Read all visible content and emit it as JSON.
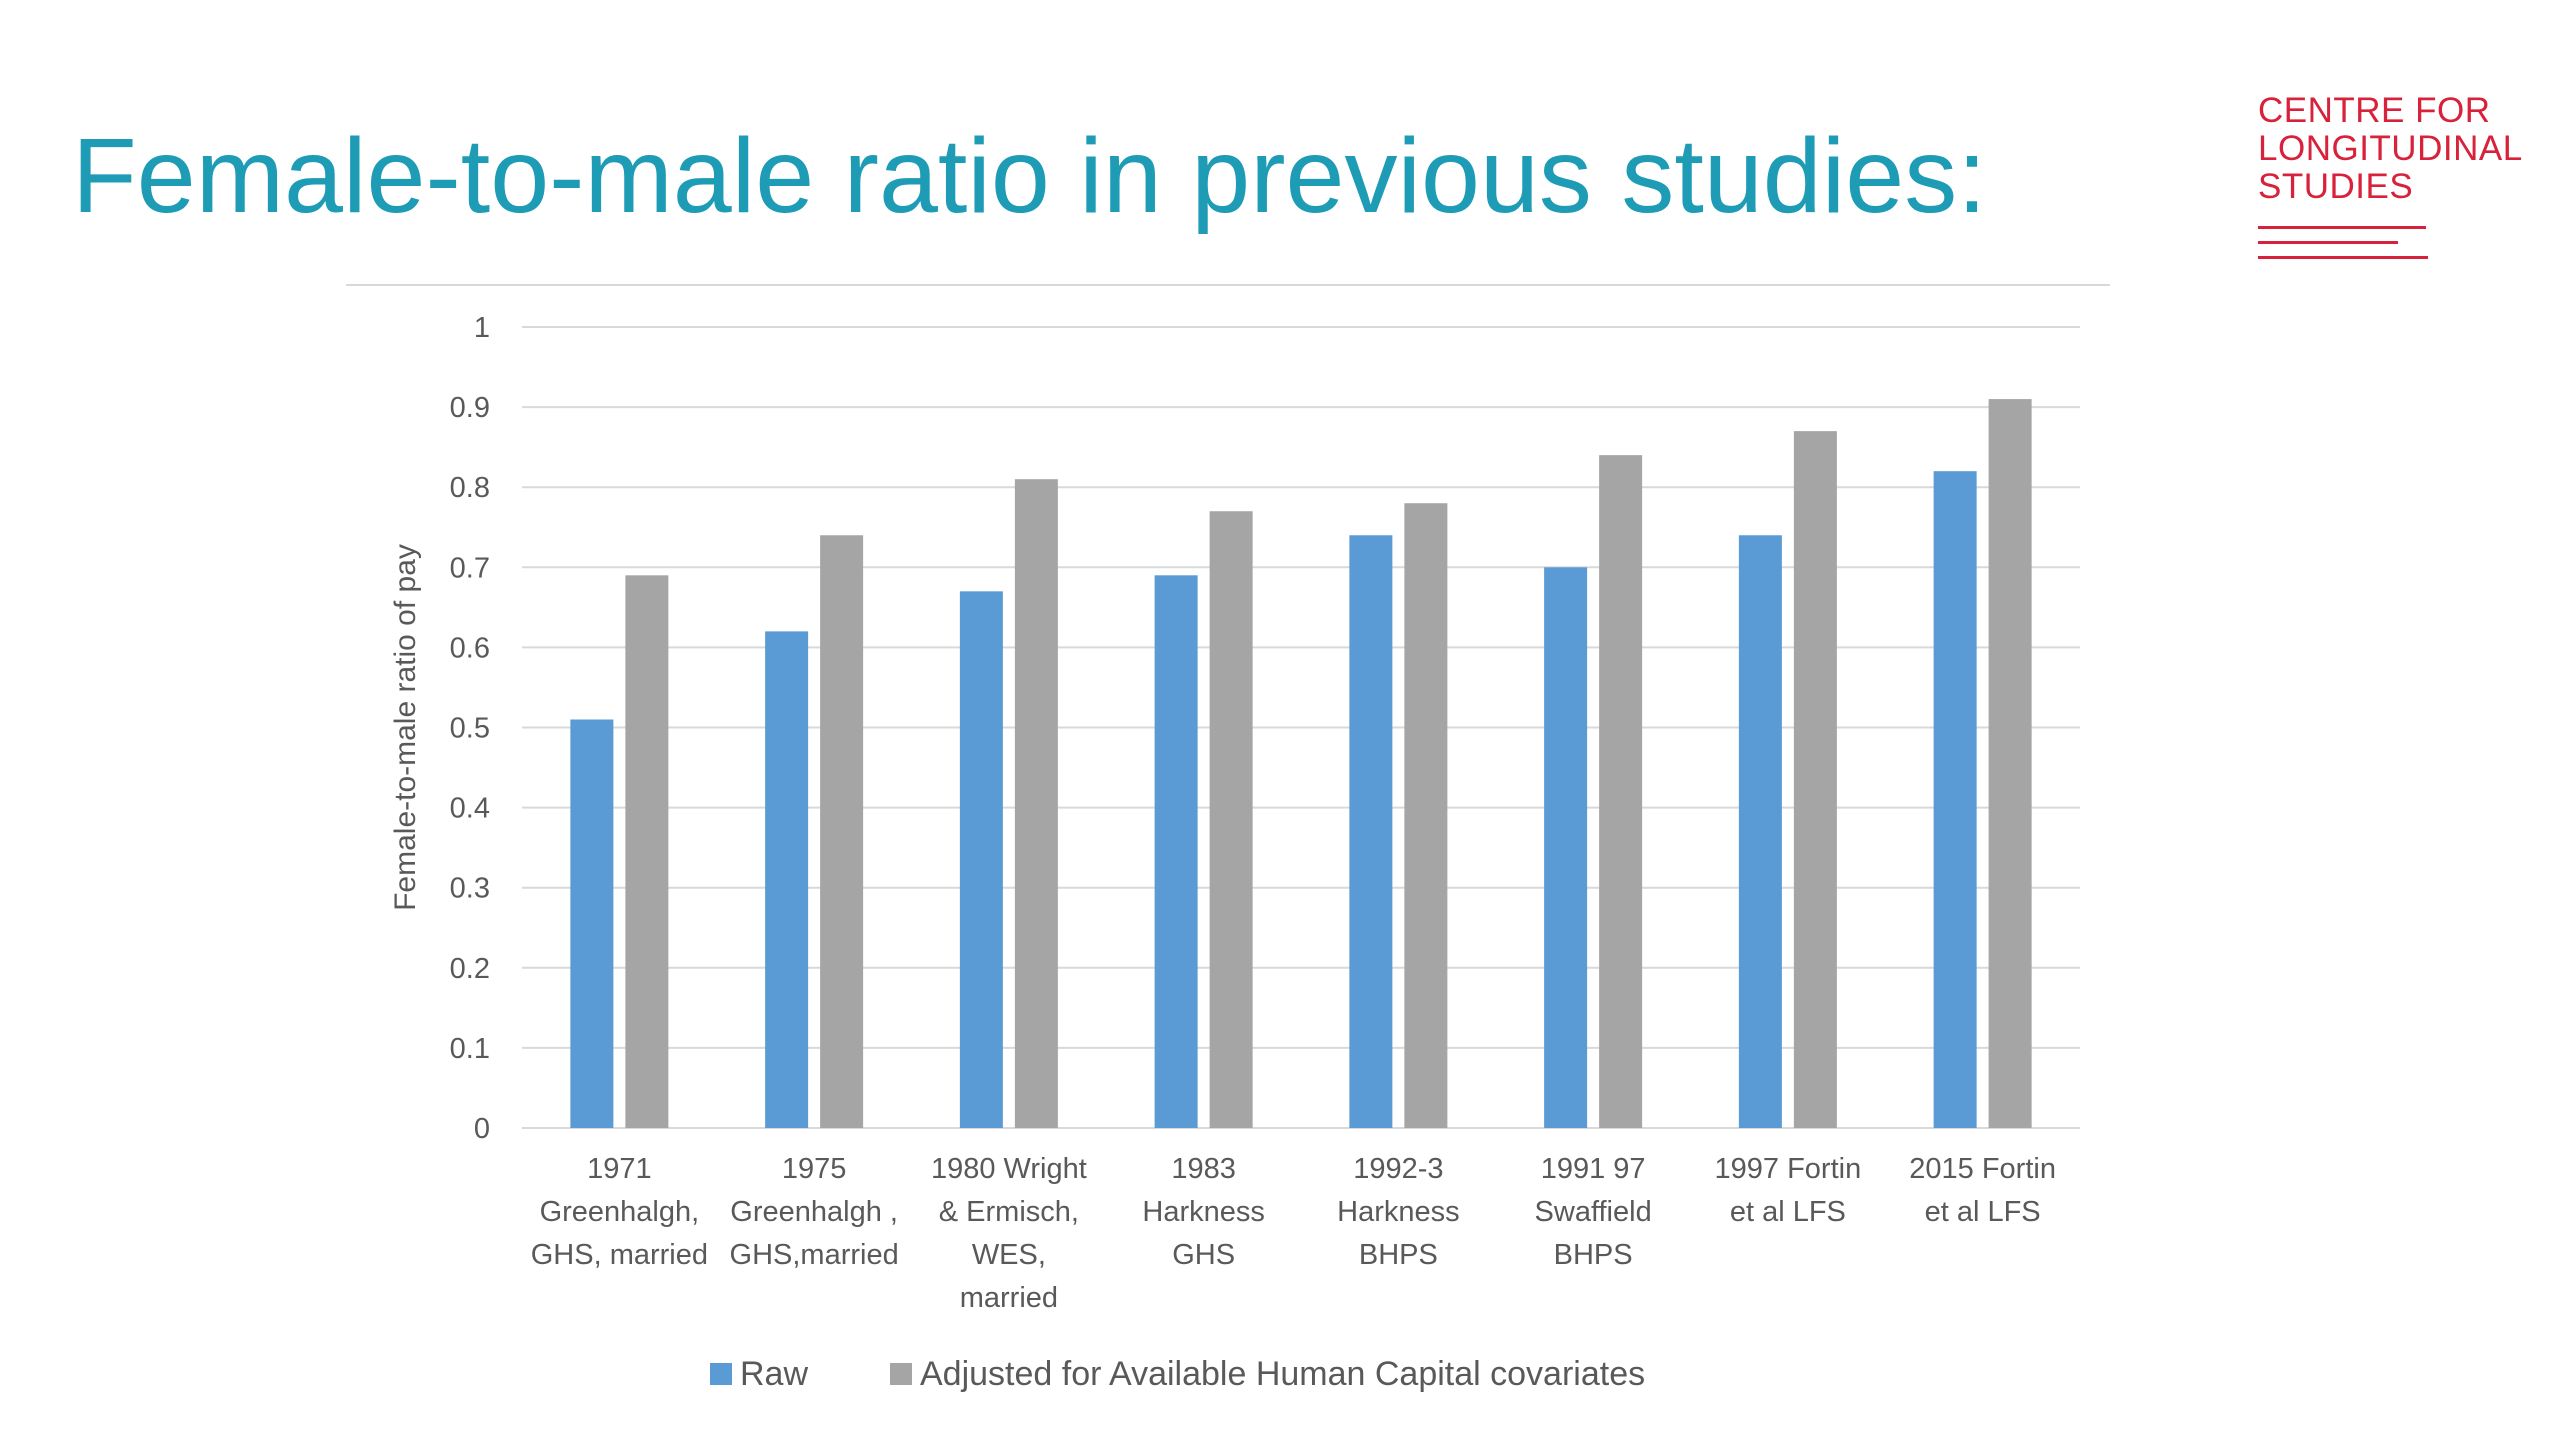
{
  "slide": {
    "title": "Female-to-male ratio in previous studies:"
  },
  "logo": {
    "lines": [
      "CENTRE FOR",
      "LONGITUDINAL",
      "STUDIES"
    ]
  },
  "colors": {
    "title": "#1e9bb5",
    "logo": "#d8213a",
    "raw": "#5b9bd5",
    "adjusted": "#a5a5a5",
    "grid": "#d9d9d9",
    "text": "#595959"
  },
  "chart_data": {
    "type": "bar",
    "title": "",
    "xlabel": "",
    "ylabel": "Female-to-male ratio of pay",
    "ylim": [
      0,
      1
    ],
    "yticks": [
      "0",
      "0.1",
      "0.2",
      "0.3",
      "0.4",
      "0.5",
      "0.6",
      "0.7",
      "0.8",
      "0.9",
      "1"
    ],
    "grid": true,
    "legend_position": "bottom",
    "categories": [
      [
        "1971",
        "Greenhalgh,",
        "GHS, married"
      ],
      [
        "1975",
        "Greenhalgh ,",
        "GHS,married"
      ],
      [
        "1980 Wright",
        "& Ermisch,",
        "WES,",
        "married"
      ],
      [
        "1983",
        "Harkness",
        "GHS"
      ],
      [
        "1992-3",
        "Harkness",
        "BHPS"
      ],
      [
        "1991 97",
        "Swaffield",
        "BHPS"
      ],
      [
        "1997 Fortin",
        "et al LFS"
      ],
      [
        "2015 Fortin",
        "et al LFS"
      ]
    ],
    "series": [
      {
        "name": "Raw",
        "color": "#5b9bd5",
        "values": [
          0.51,
          0.62,
          0.67,
          0.69,
          0.74,
          0.7,
          0.74,
          0.82
        ]
      },
      {
        "name": "Adjusted  for Available  Human Capital covariates",
        "color": "#a5a5a5",
        "values": [
          0.69,
          0.74,
          0.81,
          0.77,
          0.78,
          0.84,
          0.87,
          0.91
        ]
      }
    ]
  }
}
